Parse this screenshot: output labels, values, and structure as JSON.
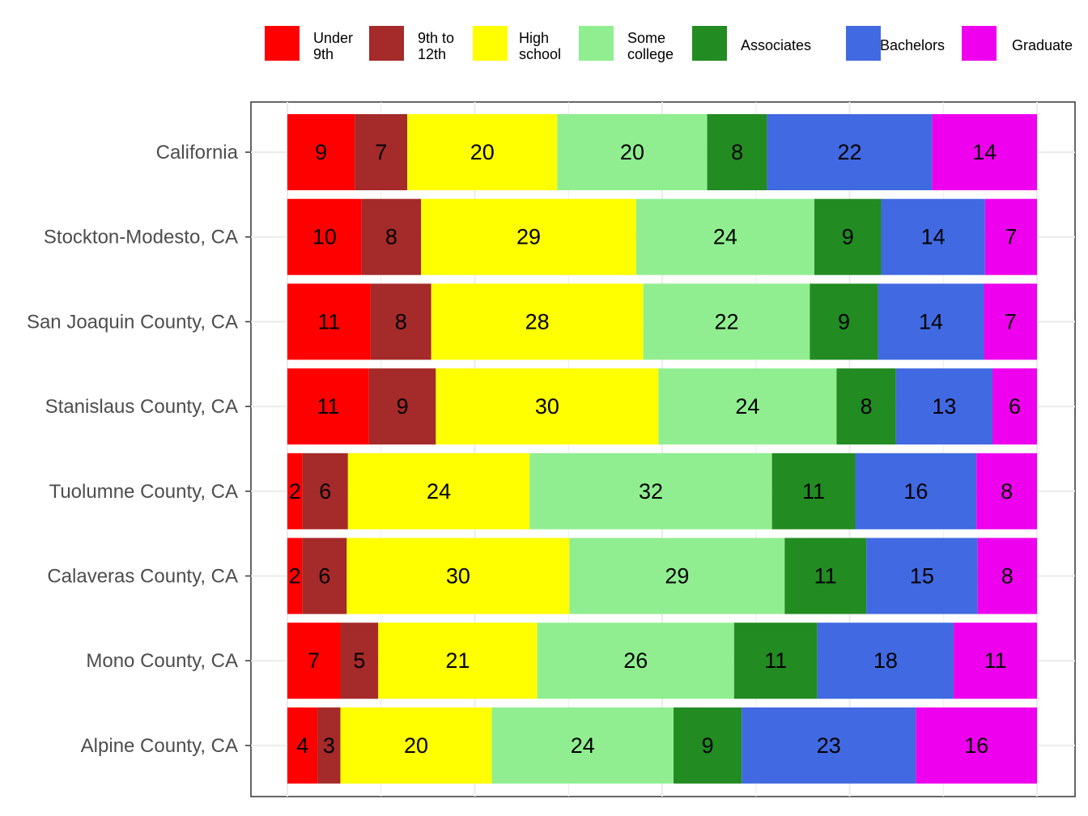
{
  "chart_data": {
    "type": "bar",
    "orientation": "horizontal",
    "stacked": "percent",
    "title": "",
    "xlabel": "",
    "ylabel": "",
    "grid": true,
    "legend_position": "top",
    "categories": [
      "California",
      "Stockton-Modesto, CA",
      "San Joaquin County, CA",
      "Stanislaus County, CA",
      "Tuolumne County, CA",
      "Calaveras County, CA",
      "Mono County, CA",
      "Alpine County, CA"
    ],
    "series": [
      {
        "name": "Under 9th",
        "legend_lines": [
          "Under",
          "9th"
        ],
        "color": "#ff0000",
        "values": [
          9,
          10,
          11,
          11,
          2,
          2,
          7,
          4
        ]
      },
      {
        "name": "9th to 12th",
        "legend_lines": [
          "9th to",
          "12th"
        ],
        "color": "#a52a2a",
        "values": [
          7,
          8,
          8,
          9,
          6,
          6,
          5,
          3
        ]
      },
      {
        "name": "High school",
        "legend_lines": [
          "High",
          "school"
        ],
        "color": "#ffff00",
        "values": [
          20,
          29,
          28,
          30,
          24,
          30,
          21,
          20
        ]
      },
      {
        "name": "Some college",
        "legend_lines": [
          "Some",
          "college"
        ],
        "color": "#90ee90",
        "values": [
          20,
          24,
          22,
          24,
          32,
          29,
          26,
          24
        ]
      },
      {
        "name": "Associates",
        "legend_lines": [
          "Associates"
        ],
        "color": "#228b22",
        "values": [
          8,
          9,
          9,
          8,
          11,
          11,
          11,
          9
        ]
      },
      {
        "name": "Bachelors",
        "legend_lines": [
          "Bachelors"
        ],
        "color": "#4169e1",
        "values": [
          22,
          14,
          14,
          13,
          16,
          15,
          18,
          23
        ]
      },
      {
        "name": "Graduate",
        "legend_lines": [
          "Graduate"
        ],
        "color": "#ee00ee",
        "values": [
          14,
          7,
          7,
          6,
          8,
          8,
          11,
          16
        ]
      }
    ]
  }
}
